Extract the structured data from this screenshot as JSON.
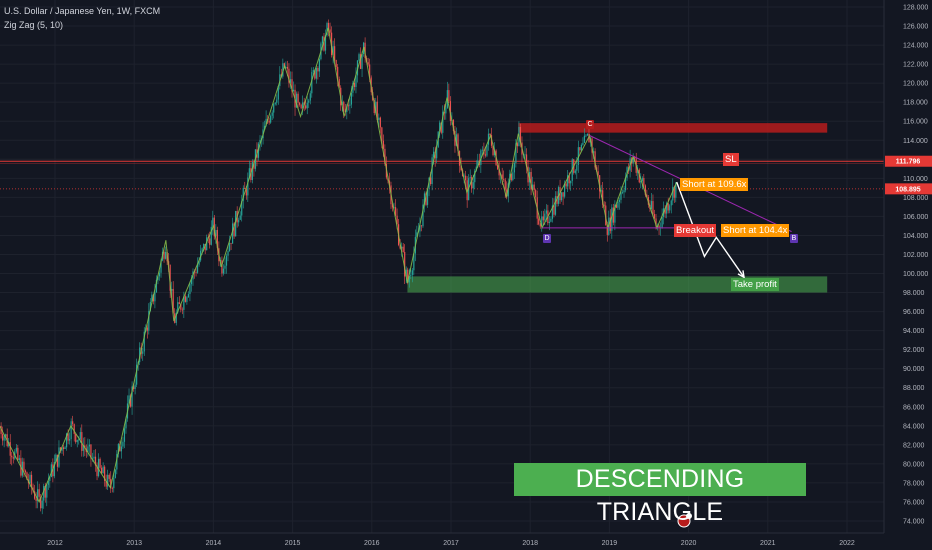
{
  "legend": {
    "symbol": "U.S. Dollar / Japanese Yen, 1W, FXCM",
    "indicator": "Zig Zag (5, 10)"
  },
  "annotations": {
    "sl": "SL",
    "short1": "Short at 109.6x",
    "short2": "Short at 104.4x",
    "breakout": "Breakout",
    "take_profit": "Take profit",
    "point_c": "C",
    "point_d": "D",
    "point_b": "B",
    "title": "DESCENDING TRIANGLE"
  },
  "price_markers": {
    "sl_price": "111.796",
    "current_price": "108.895"
  },
  "colors": {
    "background": "#131722",
    "up": "#26a69a",
    "down": "#ef5350",
    "zigzag": "#8bc34a",
    "triangle": "#9c27b0",
    "resistance_zone": "#b71c1c",
    "support_zone": "#4caf50",
    "sl_line": "#e53935",
    "orange": "#ff9800"
  },
  "chart_data": {
    "type": "candlestick",
    "title": "U.S. Dollar / Japanese Yen, 1W, FXCM",
    "ylim": [
      74,
      128
    ],
    "y_ticks": [
      "74.000",
      "76.000",
      "78.000",
      "80.000",
      "82.000",
      "84.000",
      "86.000",
      "88.000",
      "90.000",
      "92.000",
      "94.000",
      "96.000",
      "98.000",
      "100.000",
      "102.000",
      "104.000",
      "106.000",
      "108.000",
      "110.000",
      "112.000",
      "114.000",
      "116.000",
      "118.000",
      "120.000",
      "122.000",
      "124.000",
      "126.000",
      "128.000"
    ],
    "x_ticks": [
      "2012",
      "2013",
      "2014",
      "2015",
      "2016",
      "2017",
      "2018",
      "2019",
      "2020",
      "2021",
      "2022"
    ],
    "zigzag": [
      {
        "t": 2011.3,
        "p": 84.0
      },
      {
        "t": 2011.8,
        "p": 76.0
      },
      {
        "t": 2012.2,
        "p": 84.0
      },
      {
        "t": 2012.7,
        "p": 77.5
      },
      {
        "t": 2013.4,
        "p": 103.5
      },
      {
        "t": 2013.5,
        "p": 95.0
      },
      {
        "t": 2014.0,
        "p": 105.0
      },
      {
        "t": 2014.1,
        "p": 100.7
      },
      {
        "t": 2014.9,
        "p": 121.8
      },
      {
        "t": 2015.1,
        "p": 116.5
      },
      {
        "t": 2015.45,
        "p": 125.8
      },
      {
        "t": 2015.65,
        "p": 116.5
      },
      {
        "t": 2015.9,
        "p": 123.8
      },
      {
        "t": 2016.45,
        "p": 99.0
      },
      {
        "t": 2016.95,
        "p": 118.5
      },
      {
        "t": 2017.2,
        "p": 108.5
      },
      {
        "t": 2017.5,
        "p": 114.5
      },
      {
        "t": 2017.7,
        "p": 108.0
      },
      {
        "t": 2017.85,
        "p": 114.7
      },
      {
        "t": 2018.15,
        "p": 104.8
      },
      {
        "t": 2018.75,
        "p": 114.5
      },
      {
        "t": 2018.98,
        "p": 104.8
      },
      {
        "t": 2019.3,
        "p": 112.3
      },
      {
        "t": 2019.6,
        "p": 104.8
      },
      {
        "t": 2019.85,
        "p": 109.6
      }
    ],
    "resistance_zone": {
      "from": 2017.85,
      "to": 2021.75,
      "low": 114.8,
      "high": 115.8
    },
    "support_zone": {
      "from": 2016.45,
      "to": 2021.75,
      "low": 98.0,
      "high": 99.7
    },
    "triangle": {
      "upper": [
        {
          "t": 2018.75,
          "p": 114.5
        },
        {
          "t": 2021.3,
          "p": 104.4
        }
      ],
      "lower": [
        {
          "t": 2018.15,
          "p": 104.8
        },
        {
          "t": 2019.85,
          "p": 104.8
        }
      ]
    },
    "sl_level": 111.796,
    "current_level": 108.895,
    "projection": [
      {
        "t": 2019.85,
        "p": 109.6
      },
      {
        "t": 2020.2,
        "p": 101.8
      },
      {
        "t": 2020.35,
        "p": 103.8
      },
      {
        "t": 2020.7,
        "p": 99.6
      }
    ]
  }
}
